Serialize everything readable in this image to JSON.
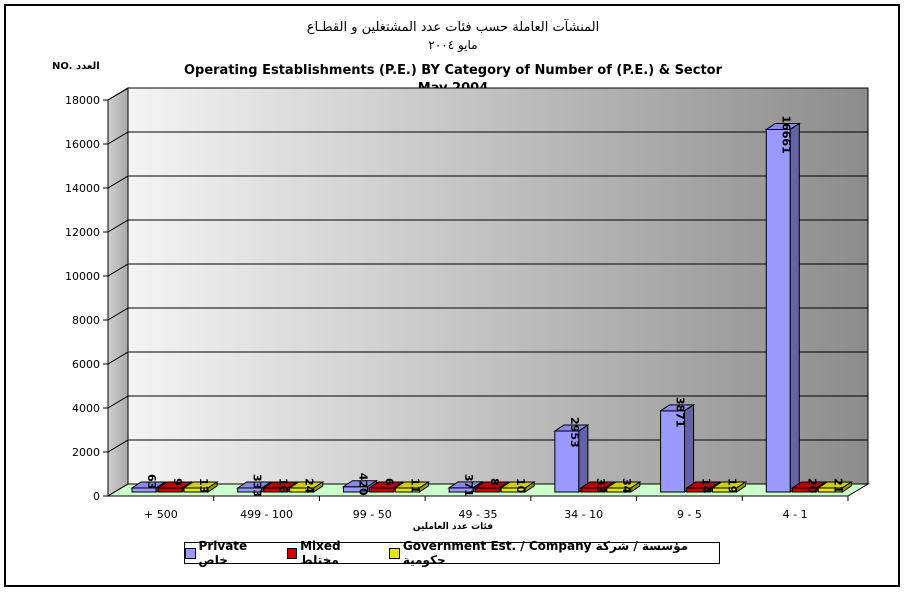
{
  "chart_data": {
    "type": "bar",
    "title_ar": "المنشآت العاملة حسب فئات عدد المشتغلين و القطـاع",
    "subtitle_ar": "مايو ٢٠٠٤",
    "title": "Operating Establishments (P.E.) BY Category of Number of (P.E.) & Sector",
    "subtitle": "May 2004",
    "ylabel": "NO. العدد",
    "xlabel": "فئات عدد العاملين",
    "ylim": [
      0,
      18000
    ],
    "yticks": [
      "0",
      "2000",
      "4000",
      "6000",
      "8000",
      "10000",
      "12000",
      "14000",
      "16000",
      "18000"
    ],
    "categories": [
      "+ 500",
      "499 - 100",
      "99 - 50",
      "49 - 35",
      "34 - 10",
      "9 - 5",
      "4 - 1"
    ],
    "series": [
      {
        "name": "Private خاص",
        "color": "#9999ff",
        "values": [
          63,
          333,
          420,
          371,
          2953,
          3871,
          16661
        ]
      },
      {
        "name": "Mixed مختلط",
        "color": "#cc0000",
        "values": [
          9,
          16,
          6,
          8,
          33,
          14,
          20
        ]
      },
      {
        "name": "Government Est. / Company مؤسسة / شركة حكومية",
        "color": "#e6e600",
        "values": [
          13,
          24,
          11,
          10,
          34,
          19,
          21
        ]
      }
    ],
    "data_labels": [
      [
        "63",
        "9",
        "13"
      ],
      [
        "333",
        "16",
        "24"
      ],
      [
        "420",
        "6",
        "11"
      ],
      [
        "371",
        "8",
        "10"
      ],
      [
        "2953",
        "33",
        "34"
      ],
      [
        "3871",
        "14",
        "19"
      ],
      [
        "16661",
        "20",
        "21"
      ]
    ],
    "grid": true,
    "legend_position": "bottom"
  }
}
